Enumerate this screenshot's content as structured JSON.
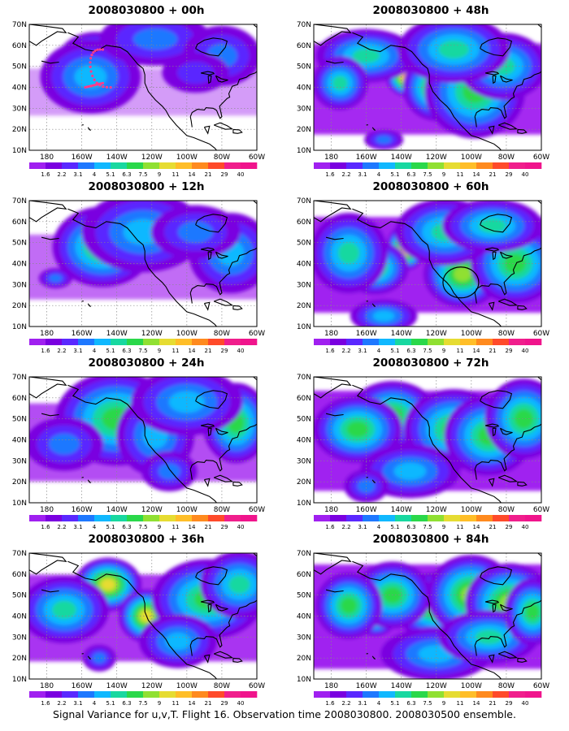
{
  "panels": [
    {
      "title": "2008030800 + 00h",
      "intensity": 0.25,
      "flight_track": true,
      "circle": false,
      "blobs": [
        [
          -158,
          43,
          10,
          7,
          0.95
        ],
        [
          -152,
          52,
          14,
          9,
          0.55
        ],
        [
          -155,
          45,
          18,
          11,
          0.35
        ],
        [
          -118,
          63,
          20,
          8,
          0.3
        ],
        [
          -80,
          55,
          14,
          9,
          0.25
        ],
        [
          -95,
          47,
          12,
          6,
          0.2
        ]
      ]
    },
    {
      "title": "2008030800 + 12h",
      "intensity": 0.45,
      "flight_track": false,
      "circle": false,
      "blobs": [
        [
          -153,
          45,
          8,
          6,
          1.0
        ],
        [
          -148,
          48,
          18,
          12,
          0.55
        ],
        [
          -125,
          55,
          22,
          12,
          0.35
        ],
        [
          -75,
          45,
          15,
          12,
          0.35
        ],
        [
          -95,
          55,
          16,
          8,
          0.3
        ],
        [
          -175,
          33,
          6,
          3,
          0.25
        ]
      ]
    },
    {
      "title": "2008030800 + 24h",
      "intensity": 0.6,
      "flight_track": false,
      "circle": false,
      "blobs": [
        [
          -145,
          52,
          9,
          7,
          1.0
        ],
        [
          -140,
          50,
          22,
          14,
          0.55
        ],
        [
          -118,
          42,
          14,
          12,
          0.4
        ],
        [
          -72,
          48,
          12,
          12,
          0.55
        ],
        [
          -100,
          58,
          20,
          10,
          0.35
        ],
        [
          -170,
          38,
          14,
          8,
          0.3
        ],
        [
          -110,
          25,
          10,
          6,
          0.25
        ]
      ]
    },
    {
      "title": "2008030800 + 36h",
      "intensity": 0.7,
      "flight_track": false,
      "circle": false,
      "blobs": [
        [
          -145,
          55,
          12,
          8,
          0.7
        ],
        [
          -123,
          40,
          10,
          8,
          0.75
        ],
        [
          -170,
          43,
          16,
          10,
          0.45
        ],
        [
          -88,
          48,
          20,
          12,
          0.5
        ],
        [
          -105,
          28,
          14,
          8,
          0.35
        ],
        [
          -150,
          20,
          6,
          4,
          0.3
        ],
        [
          -70,
          55,
          14,
          10,
          0.45
        ]
      ]
    },
    {
      "title": "2008030800 + 48h",
      "intensity": 0.75,
      "flight_track": false,
      "circle": false,
      "blobs": [
        [
          -136,
          45,
          8,
          6,
          0.95
        ],
        [
          -120,
          40,
          12,
          10,
          0.65
        ],
        [
          -98,
          38,
          18,
          14,
          0.55
        ],
        [
          -160,
          55,
          18,
          8,
          0.45
        ],
        [
          -175,
          42,
          10,
          8,
          0.45
        ],
        [
          -82,
          50,
          16,
          10,
          0.45
        ],
        [
          -110,
          58,
          20,
          10,
          0.45
        ],
        [
          -150,
          15,
          7,
          3,
          0.3
        ]
      ]
    },
    {
      "title": "2008030800 + 60h",
      "intensity": 0.8,
      "flight_track": false,
      "circle": true,
      "blobs": [
        [
          -137,
          48,
          7,
          7,
          0.95
        ],
        [
          -105,
          35,
          14,
          10,
          0.65
        ],
        [
          -155,
          38,
          12,
          8,
          0.55
        ],
        [
          -75,
          40,
          16,
          12,
          0.55
        ],
        [
          -170,
          45,
          14,
          12,
          0.45
        ],
        [
          -115,
          55,
          18,
          10,
          0.45
        ],
        [
          -150,
          15,
          12,
          5,
          0.35
        ],
        [
          -88,
          58,
          18,
          8,
          0.45
        ]
      ]
    },
    {
      "title": "2008030800 + 72h",
      "intensity": 0.85,
      "flight_track": false,
      "circle": false,
      "blobs": [
        [
          -132,
          48,
          7,
          7,
          0.8
        ],
        [
          -145,
          52,
          16,
          10,
          0.55
        ],
        [
          -110,
          45,
          18,
          12,
          0.55
        ],
        [
          -90,
          42,
          16,
          12,
          0.55
        ],
        [
          -70,
          50,
          14,
          12,
          0.5
        ],
        [
          -165,
          45,
          16,
          10,
          0.5
        ],
        [
          -135,
          25,
          18,
          8,
          0.4
        ],
        [
          -160,
          18,
          8,
          5,
          0.3
        ]
      ]
    },
    {
      "title": "2008030800 + 84h",
      "intensity": 0.9,
      "flight_track": false,
      "circle": false,
      "blobs": [
        [
          -155,
          40,
          8,
          6,
          0.65
        ],
        [
          -120,
          45,
          16,
          10,
          0.6
        ],
        [
          -100,
          50,
          16,
          12,
          0.6
        ],
        [
          -78,
          46,
          16,
          12,
          0.6
        ],
        [
          -145,
          50,
          14,
          10,
          0.55
        ],
        [
          -170,
          45,
          12,
          10,
          0.5
        ],
        [
          -120,
          22,
          20,
          8,
          0.4
        ],
        [
          -90,
          30,
          18,
          8,
          0.45
        ],
        [
          -65,
          42,
          10,
          10,
          0.55
        ]
      ]
    }
  ],
  "axes": {
    "lat_labels": [
      "10N",
      "20N",
      "30N",
      "40N",
      "50N",
      "60N",
      "70N"
    ],
    "lon_labels": [
      "180",
      "160W",
      "140W",
      "120W",
      "100W",
      "80W",
      "60W"
    ],
    "lon_range": [
      -190,
      -60
    ],
    "lat_range": [
      10,
      70
    ]
  },
  "colorbar": {
    "labels": [
      "1.6",
      "2.2",
      "3.1",
      "4",
      "5.1",
      "6.3",
      "7.5",
      "9",
      "11",
      "14",
      "21",
      "29",
      "40"
    ],
    "colors": [
      "#a020f0",
      "#7a00e0",
      "#5a28ff",
      "#1e78ff",
      "#10b8ff",
      "#18d8a0",
      "#2ad84a",
      "#90e032",
      "#e6dc32",
      "#ffbe28",
      "#ff8a1e",
      "#ff4a2a",
      "#f01e8c",
      "#f0148c"
    ]
  },
  "footer": "Signal Variance for u,v,T. Flight 16. Observation time 2008030800. 2008030500 ensemble."
}
